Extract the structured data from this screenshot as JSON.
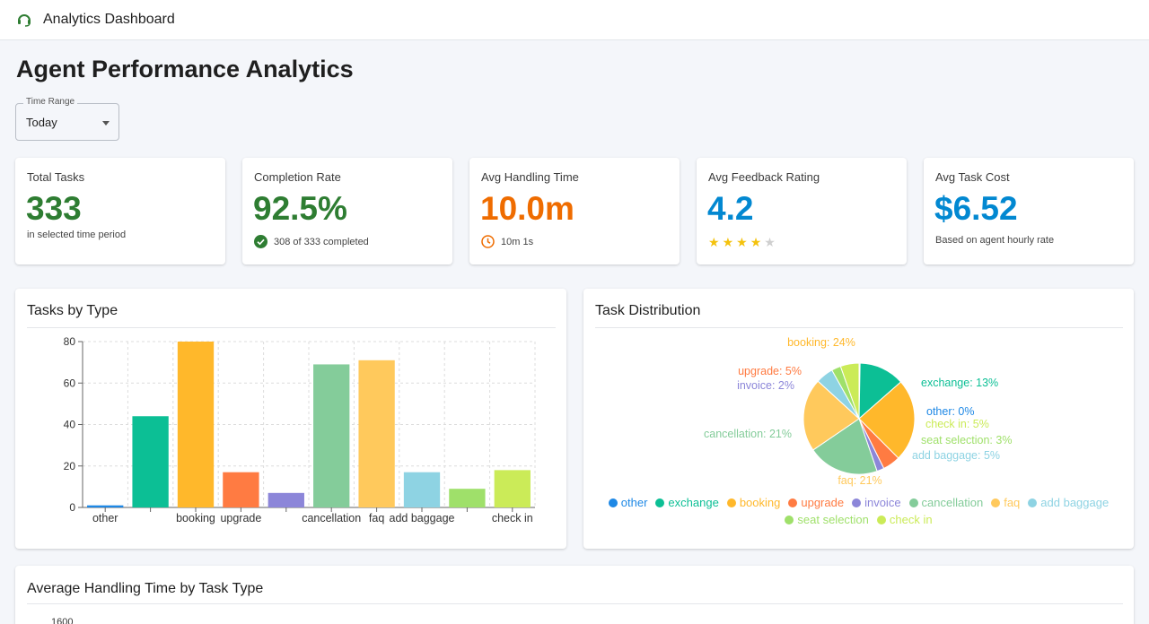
{
  "appbar": {
    "title": "Analytics Dashboard",
    "logo_icon": "headset-icon"
  },
  "page": {
    "title": "Agent Performance Analytics"
  },
  "time_range": {
    "label": "Time Range",
    "value": "Today"
  },
  "kpis": {
    "total": {
      "title": "Total Tasks",
      "value": "333",
      "sub": "in selected time period",
      "color": "#2e7d32"
    },
    "completion": {
      "title": "Completion Rate",
      "value": "92.5%",
      "sub": "308 of 333 completed",
      "icon": "check-circle-icon",
      "color": "#2e7d32"
    },
    "handling": {
      "title": "Avg Handling Time",
      "value": "10.0m",
      "sub": "10m 1s",
      "icon": "clock-icon",
      "color": "#ef6c00"
    },
    "feedback": {
      "title": "Avg Feedback Rating",
      "value": "4.2",
      "stars": 4,
      "stars_max": 5,
      "color": "#0288d1"
    },
    "cost": {
      "title": "Avg Task Cost",
      "value": "$6.52",
      "sub": "Based on agent hourly rate",
      "color": "#0288d1"
    }
  },
  "tasks_by_type": {
    "title": "Tasks by Type"
  },
  "task_distribution": {
    "title": "Task Distribution"
  },
  "avg_handling_section": {
    "title": "Average Handling Time by Task Type",
    "partial_tick": "1600"
  },
  "chart_data": [
    {
      "type": "bar",
      "categories": [
        "other",
        "exchange",
        "booking",
        "upgrade",
        "invoice",
        "cancellation",
        "faq",
        "add baggage",
        "seat selection",
        "check in"
      ],
      "tick_labels_shown": [
        "other",
        "",
        "booking",
        "upgrade",
        "",
        "cancellation",
        "faq",
        "add baggage",
        "",
        "check in"
      ],
      "values": [
        1,
        44,
        80,
        17,
        7,
        69,
        71,
        17,
        9,
        18
      ],
      "colors": [
        "#1e88e5",
        "#0cbf95",
        "#ffb82b",
        "#ff7b42",
        "#8c86d9",
        "#84cc9a",
        "#ffc95c",
        "#8ed3e3",
        "#9fe06a",
        "#cbeb58"
      ],
      "ylim": [
        0,
        80
      ],
      "yticks": [
        0,
        20,
        40,
        60,
        80
      ],
      "grid": true
    },
    {
      "type": "pie",
      "labels": [
        "other",
        "exchange",
        "booking",
        "upgrade",
        "invoice",
        "cancellation",
        "faq",
        "add baggage",
        "seat selection",
        "check in"
      ],
      "values": [
        1,
        44,
        80,
        17,
        7,
        69,
        71,
        17,
        9,
        18
      ],
      "slice_labels": [
        "other: 0%",
        "exchange: 13%",
        "booking: 24%",
        "upgrade: 5%",
        "invoice: 2%",
        "cancellation: 21%",
        "faq: 21%",
        "add baggage: 5%",
        "seat selection: 3%",
        "check in: 5%"
      ],
      "colors": [
        "#1e88e5",
        "#0cbf95",
        "#ffb82b",
        "#ff7b42",
        "#8c86d9",
        "#84cc9a",
        "#ffc95c",
        "#8ed3e3",
        "#9fe06a",
        "#cbeb58"
      ],
      "legend": "bottom"
    }
  ]
}
